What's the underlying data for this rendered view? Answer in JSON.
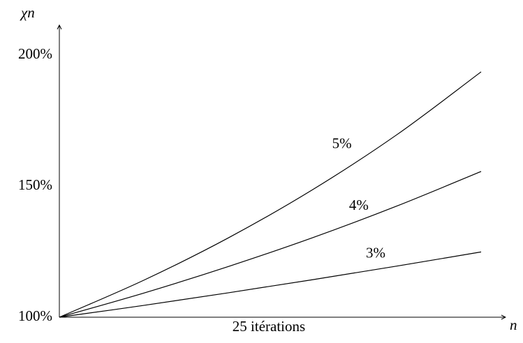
{
  "chart_data": {
    "type": "line",
    "y_label": "χn",
    "x_label": "n",
    "annotation": "25 itérations",
    "x": [
      0,
      5,
      10,
      15,
      20,
      25
    ],
    "series": [
      {
        "name": "5%",
        "color": "#000000",
        "values": [
          100,
          114.1,
          130.2,
          148.6,
          169.6,
          193.6
        ]
      },
      {
        "name": "4%",
        "color": "#000000",
        "values": [
          100,
          109.2,
          119.3,
          130.3,
          142.4,
          155.6
        ]
      },
      {
        "name": "3%",
        "color": "#000000",
        "values": [
          100,
          104.5,
          109.3,
          114.3,
          119.5,
          124.9
        ]
      }
    ],
    "xlim": [
      0,
      26.4
    ],
    "ylim": [
      100,
      211
    ],
    "yticks": [
      {
        "value": 100,
        "label": "100%"
      },
      {
        "value": 150,
        "label": "150%"
      },
      {
        "value": 200,
        "label": "200%"
      }
    ]
  }
}
